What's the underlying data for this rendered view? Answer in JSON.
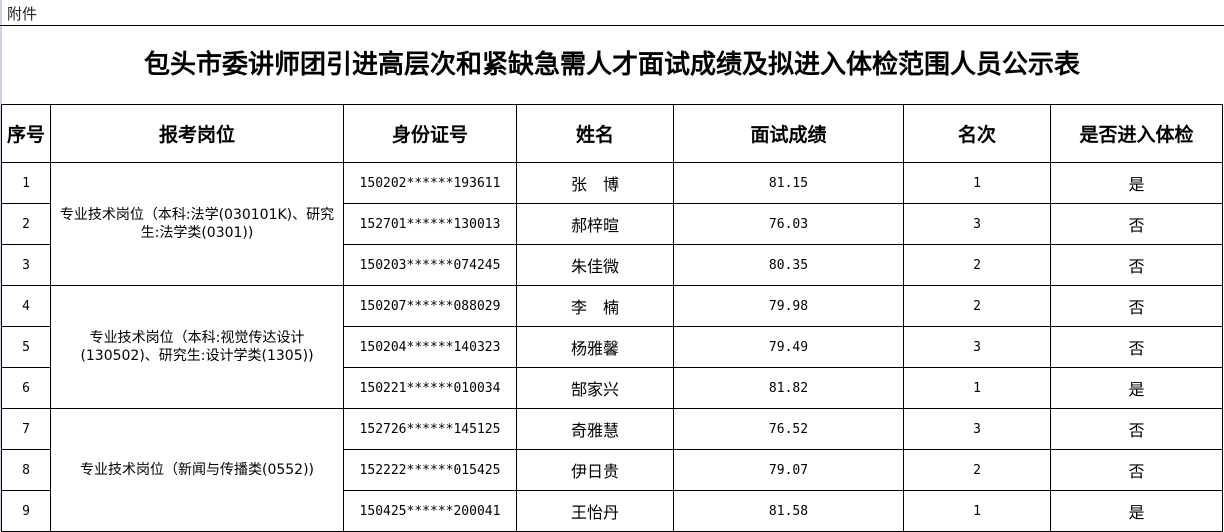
{
  "attachment_label": "附件",
  "title": "包头市委讲师团引进高层次和紧缺急需人才面试成绩及拟进入体检范围人员公示表",
  "headers": [
    "序号",
    "报考岗位",
    "身份证号",
    "姓名",
    "面试成绩",
    "名次",
    "是否进入体检"
  ],
  "positions": [
    "专业技术岗位（本科:法学(030101K)、研究生:法学类(0301))",
    "专业技术岗位（本科:视觉传达设计(130502)、研究生:设计学类(1305))",
    "专业技术岗位（新闻与传播类(0552))"
  ],
  "rows": [
    {
      "no": "1",
      "id": "150202******193611",
      "name": "张　博",
      "score": "81.15",
      "rank": "1",
      "exam": "是"
    },
    {
      "no": "2",
      "id": "152701******130013",
      "name": "郝梓暄",
      "score": "76.03",
      "rank": "3",
      "exam": "否"
    },
    {
      "no": "3",
      "id": "150203******074245",
      "name": "朱佳微",
      "score": "80.35",
      "rank": "2",
      "exam": "否"
    },
    {
      "no": "4",
      "id": "150207******088029",
      "name": "李　楠",
      "score": "79.98",
      "rank": "2",
      "exam": "否"
    },
    {
      "no": "5",
      "id": "150204******140323",
      "name": "杨雅馨",
      "score": "79.49",
      "rank": "3",
      "exam": "否"
    },
    {
      "no": "6",
      "id": "150221******010034",
      "name": "郜家兴",
      "score": "81.82",
      "rank": "1",
      "exam": "是"
    },
    {
      "no": "7",
      "id": "152726******145125",
      "name": "奇雅慧",
      "score": "76.52",
      "rank": "3",
      "exam": "否"
    },
    {
      "no": "8",
      "id": "152222******015425",
      "name": "伊日贵",
      "score": "79.07",
      "rank": "2",
      "exam": "否"
    },
    {
      "no": "9",
      "id": "150425******200041",
      "name": "王怡丹",
      "score": "81.58",
      "rank": "1",
      "exam": "是"
    }
  ]
}
